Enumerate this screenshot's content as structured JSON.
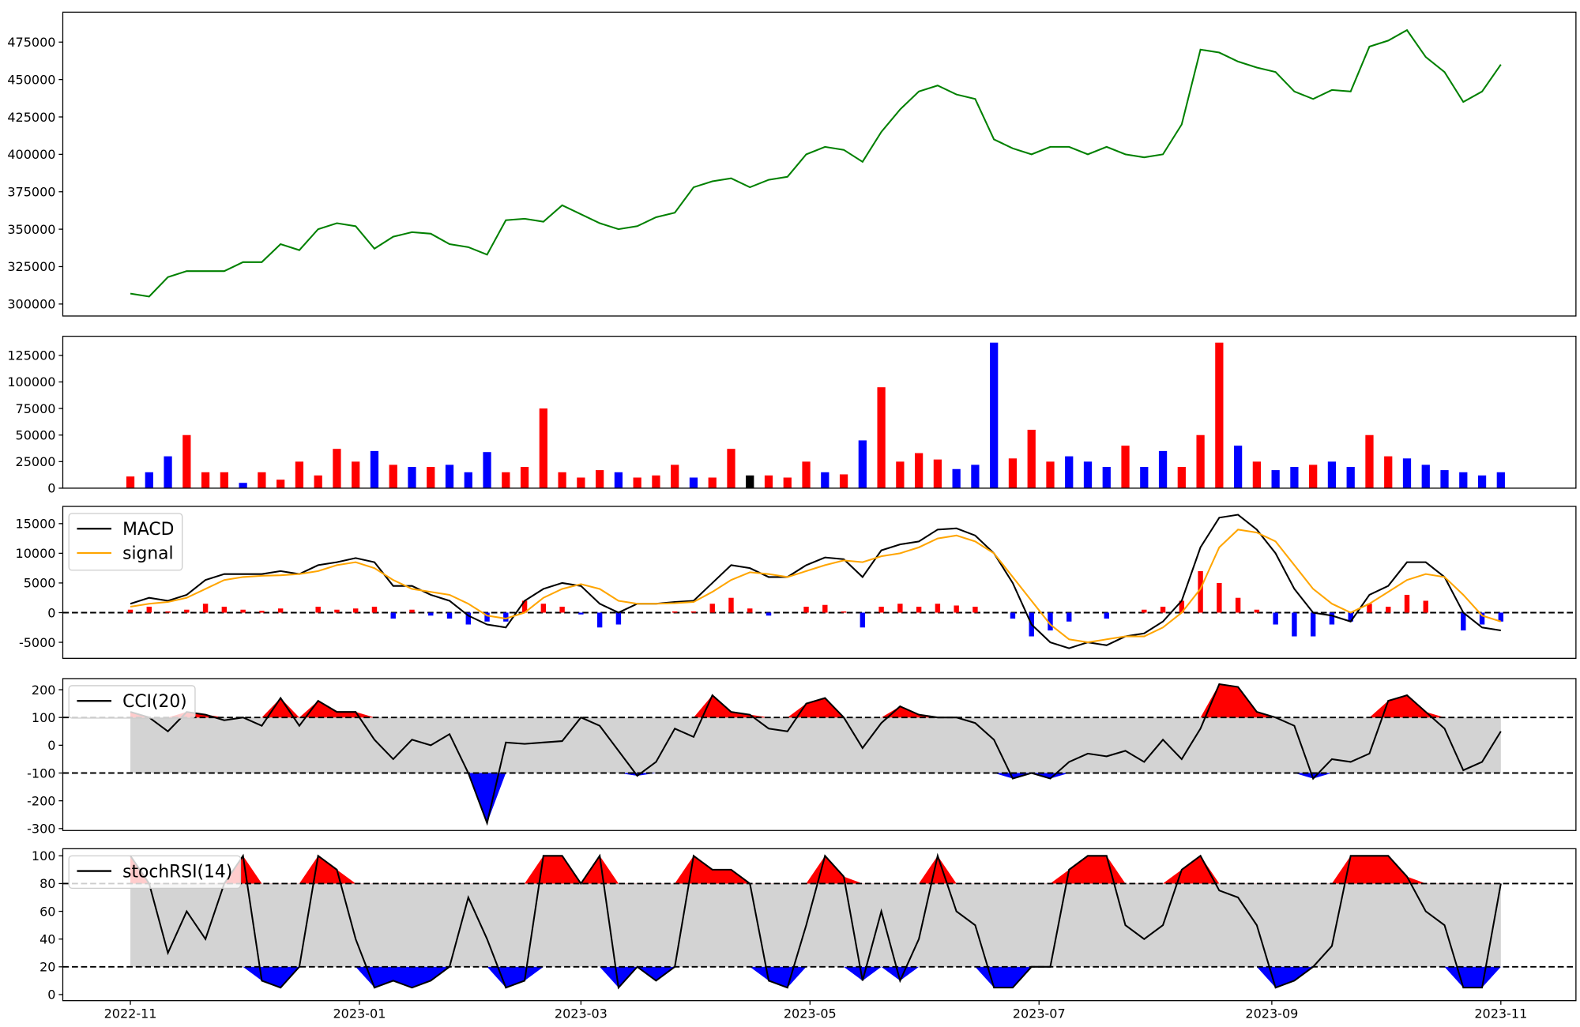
{
  "x": [
    0,
    5,
    10,
    15,
    20,
    25,
    30,
    35,
    40,
    45,
    50,
    55,
    60,
    65,
    70,
    75,
    80,
    85,
    90,
    95,
    100,
    105,
    110,
    115,
    120,
    125,
    130,
    135,
    140,
    145,
    150,
    155,
    160,
    165,
    170,
    175,
    180,
    185,
    190,
    195,
    200,
    205,
    210,
    215,
    220,
    225,
    230,
    235,
    240,
    245,
    250,
    255,
    260,
    265,
    270,
    275,
    280,
    285,
    290,
    295,
    300,
    305,
    310,
    315,
    320,
    325,
    330,
    335,
    340,
    345,
    350,
    355,
    360,
    365
  ],
  "xlim": [
    -18,
    385
  ],
  "xticks": [
    {
      "value": 0,
      "label": "2022-11"
    },
    {
      "value": 61,
      "label": "2023-01"
    },
    {
      "value": 120,
      "label": "2023-03"
    },
    {
      "value": 181,
      "label": "2023-05"
    },
    {
      "value": 242,
      "label": "2023-07"
    },
    {
      "value": 304,
      "label": "2023-09"
    },
    {
      "value": 365,
      "label": "2023-11"
    }
  ],
  "chart_data": [
    {
      "type": "line",
      "ylim": [
        292000,
        495000
      ],
      "yticks": [
        300000,
        325000,
        350000,
        375000,
        400000,
        425000,
        450000,
        475000
      ],
      "series": [
        {
          "color": "green",
          "values": [
            307000,
            305000,
            318000,
            322000,
            322000,
            322000,
            328000,
            328000,
            340000,
            336000,
            350000,
            354000,
            352000,
            337000,
            345000,
            348000,
            347000,
            340000,
            338000,
            333000,
            356000,
            357000,
            355000,
            366000,
            360000,
            354000,
            350000,
            352000,
            358000,
            361000,
            378000,
            382000,
            384000,
            378000,
            383000,
            385000,
            400000,
            405000,
            403000,
            395000,
            415000,
            430000,
            442000,
            446000,
            440000,
            437000,
            410000,
            404000,
            400000,
            405000,
            405000,
            400000,
            405000,
            400000,
            398000,
            400000,
            420000,
            470000,
            468000,
            462000,
            458000,
            455000,
            442000,
            437000,
            443000,
            442000,
            472000,
            476000,
            483000,
            465000,
            455000,
            435000,
            442000,
            460000
          ]
        }
      ]
    },
    {
      "type": "bar",
      "ylim": [
        0,
        143000
      ],
      "yticks": [
        0,
        25000,
        50000,
        75000,
        100000,
        125000
      ],
      "values": [
        11000,
        15000,
        30000,
        50000,
        15000,
        15000,
        5000,
        15000,
        8000,
        25000,
        12000,
        37000,
        25000,
        35000,
        22000,
        20000,
        20000,
        22000,
        15000,
        34000,
        15000,
        20000,
        75000,
        15000,
        10000,
        17000,
        15000,
        10000,
        12000,
        22000,
        10000,
        10000,
        37000,
        12000,
        12000,
        10000,
        25000,
        15000,
        13000,
        45000,
        95000,
        25000,
        33000,
        27000,
        18000,
        22000,
        137000,
        28000,
        55000,
        25000,
        30000,
        25000,
        20000,
        40000,
        20000,
        35000,
        20000,
        50000,
        137000,
        40000,
        25000,
        17000,
        20000,
        22000,
        25000,
        20000,
        50000,
        30000,
        28000,
        22000,
        17000,
        15000,
        12000,
        15000
      ],
      "colors": [
        "red",
        "blue",
        "blue",
        "red",
        "red",
        "red",
        "blue",
        "red",
        "red",
        "red",
        "red",
        "red",
        "red",
        "blue",
        "red",
        "blue",
        "red",
        "blue",
        "blue",
        "blue",
        "red",
        "red",
        "red",
        "red",
        "red",
        "red",
        "blue",
        "red",
        "red",
        "red",
        "blue",
        "red",
        "red",
        "black",
        "red",
        "red",
        "red",
        "blue",
        "red",
        "blue",
        "red",
        "red",
        "red",
        "red",
        "blue",
        "blue",
        "blue",
        "red",
        "red",
        "red",
        "blue",
        "blue",
        "blue",
        "red",
        "blue",
        "blue",
        "red",
        "red",
        "red",
        "blue",
        "red",
        "blue",
        "blue",
        "red",
        "blue",
        "blue",
        "red",
        "red",
        "blue",
        "blue",
        "blue",
        "blue",
        "blue",
        "blue"
      ]
    },
    {
      "type": "line",
      "ylim": [
        -7700,
        17900
      ],
      "yticks": [
        -5000,
        0,
        5000,
        10000,
        15000
      ],
      "hlines": [
        0
      ],
      "legend": "upper left",
      "series": [
        {
          "kind": "bar",
          "up_color": "red",
          "down_color": "blue",
          "values": [
            500,
            1000,
            200,
            500,
            1500,
            1000,
            500,
            300,
            700,
            0,
            1000,
            500,
            700,
            1000,
            -1000,
            500,
            -500,
            -1000,
            -2000,
            -1500,
            -1500,
            2000,
            1500,
            1000,
            -300,
            -2500,
            -2000,
            0,
            0,
            200,
            200,
            1500,
            2500,
            700,
            -500,
            0,
            1000,
            1300,
            200,
            -2500,
            1000,
            1500,
            1000,
            1500,
            1200,
            1000,
            0,
            -1000,
            -4000,
            -3000,
            -1500,
            0,
            -1000,
            0,
            500,
            1000,
            2000,
            7000,
            5000,
            2500,
            500,
            -2000,
            -4000,
            -4000,
            -2000,
            -1500,
            1500,
            1000,
            3000,
            2000,
            0,
            -3000,
            -2000,
            -1500
          ]
        },
        {
          "name": "MACD",
          "color": "black",
          "values": [
            1500,
            2500,
            2000,
            3000,
            5500,
            6500,
            6500,
            6500,
            7000,
            6500,
            8000,
            8500,
            9200,
            8500,
            4500,
            4500,
            3000,
            2000,
            -500,
            -2000,
            -2500,
            2000,
            4000,
            5000,
            4500,
            1500,
            0,
            1500,
            1500,
            1800,
            2000,
            5000,
            8000,
            7500,
            6000,
            6000,
            8000,
            9300,
            9000,
            6000,
            10500,
            11500,
            12000,
            14000,
            14200,
            13000,
            10000,
            5000,
            -2000,
            -5000,
            -6000,
            -5000,
            -5500,
            -4000,
            -3500,
            -1500,
            2000,
            11000,
            16000,
            16500,
            14000,
            10000,
            4000,
            0,
            -500,
            -1500,
            3000,
            4500,
            8500,
            8500,
            6000,
            0,
            -2500,
            -3000
          ]
        },
        {
          "name": "signal",
          "color": "orange",
          "values": [
            1000,
            1500,
            1800,
            2500,
            4000,
            5500,
            6000,
            6200,
            6300,
            6500,
            7000,
            8000,
            8500,
            7500,
            5500,
            4000,
            3500,
            3000,
            1500,
            -500,
            -1000,
            0,
            2500,
            4000,
            4800,
            4000,
            2000,
            1500,
            1500,
            1600,
            1800,
            3500,
            5500,
            6800,
            6500,
            6000,
            7000,
            8000,
            8800,
            8500,
            9500,
            10000,
            11000,
            12500,
            13000,
            12000,
            10000,
            6000,
            2000,
            -2000,
            -4500,
            -5000,
            -4500,
            -4000,
            -4000,
            -2500,
            0,
            4000,
            11000,
            14000,
            13500,
            12000,
            8000,
            4000,
            1500,
            0,
            1500,
            3500,
            5500,
            6500,
            6000,
            3000,
            -500,
            -1500
          ]
        }
      ]
    },
    {
      "type": "oscillator",
      "ylim": [
        -307,
        240
      ],
      "yticks": [
        -300,
        -200,
        -100,
        0,
        100,
        200
      ],
      "hlines": [
        -100,
        100
      ],
      "legend": "upper left",
      "band_color": "#d3d3d3",
      "above_color": "red",
      "below_color": "blue",
      "series": [
        {
          "name": "CCI(20)",
          "color": "black",
          "values": [
            120,
            100,
            50,
            120,
            110,
            90,
            100,
            70,
            170,
            70,
            160,
            120,
            120,
            20,
            -50,
            20,
            0,
            40,
            -100,
            -280,
            10,
            5,
            10,
            15,
            100,
            70,
            -20,
            -110,
            -60,
            60,
            30,
            180,
            120,
            110,
            60,
            50,
            150,
            170,
            100,
            -10,
            80,
            140,
            110,
            100,
            100,
            80,
            20,
            -120,
            -100,
            -120,
            -60,
            -30,
            -40,
            -20,
            -60,
            20,
            -50,
            60,
            220,
            210,
            120,
            100,
            70,
            -120,
            -50,
            -60,
            -30,
            160,
            180,
            120,
            60,
            -90,
            -60,
            50
          ]
        }
      ]
    },
    {
      "type": "oscillator",
      "ylim": [
        -4.4,
        105.1
      ],
      "yticks": [
        0,
        20,
        40,
        60,
        80,
        100
      ],
      "hlines": [
        20,
        80
      ],
      "legend": "upper left",
      "band_color": "#d3d3d3",
      "above_color": "red",
      "below_color": "blue",
      "series": [
        {
          "name": "stochRSI(14)",
          "color": "black",
          "values": [
            100,
            80,
            30,
            60,
            40,
            80,
            100,
            10,
            5,
            20,
            100,
            90,
            40,
            5,
            10,
            5,
            10,
            20,
            70,
            40,
            5,
            10,
            100,
            100,
            80,
            100,
            5,
            20,
            10,
            20,
            100,
            90,
            90,
            80,
            10,
            5,
            50,
            100,
            85,
            10,
            60,
            10,
            40,
            100,
            60,
            50,
            5,
            5,
            20,
            20,
            90,
            100,
            100,
            50,
            40,
            50,
            90,
            100,
            75,
            70,
            50,
            5,
            10,
            20,
            35,
            100,
            100,
            100,
            85,
            60,
            50,
            5,
            5,
            80
          ]
        }
      ]
    }
  ]
}
